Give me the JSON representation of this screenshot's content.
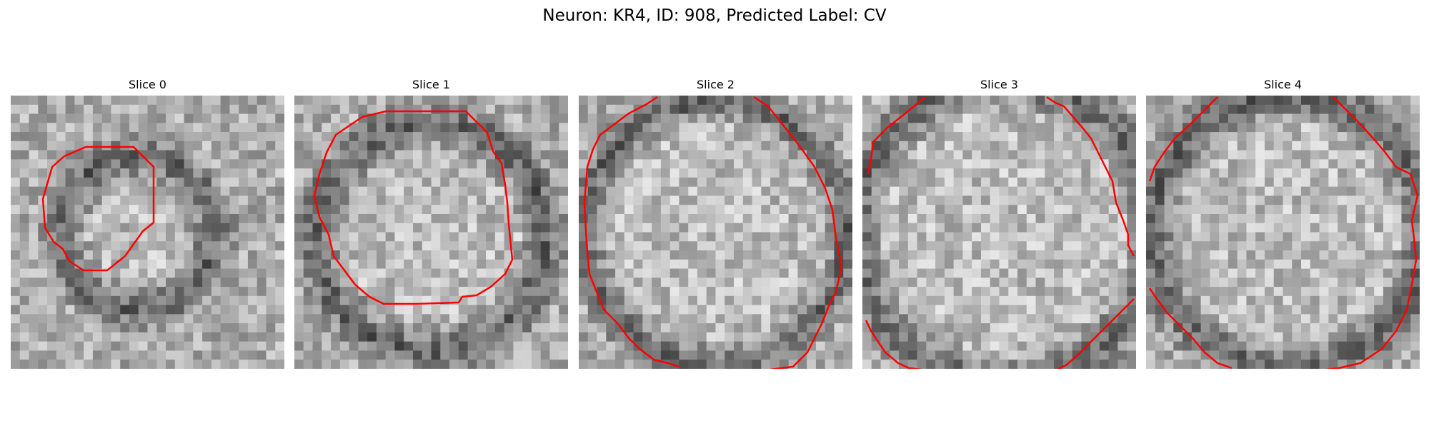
{
  "figure": {
    "title": "Neuron: KR4, ID: 908, Predicted Label: CV"
  },
  "slices": [
    {
      "title": "Slice 0"
    },
    {
      "title": "Slice 1"
    },
    {
      "title": "Slice 2"
    },
    {
      "title": "Slice 3"
    },
    {
      "title": "Slice 4"
    }
  ],
  "colors": {
    "contour": "#ff0000",
    "background": "#ffffff"
  },
  "image": {
    "colormap": "grayscale",
    "grid_cells_per_side": 30
  }
}
